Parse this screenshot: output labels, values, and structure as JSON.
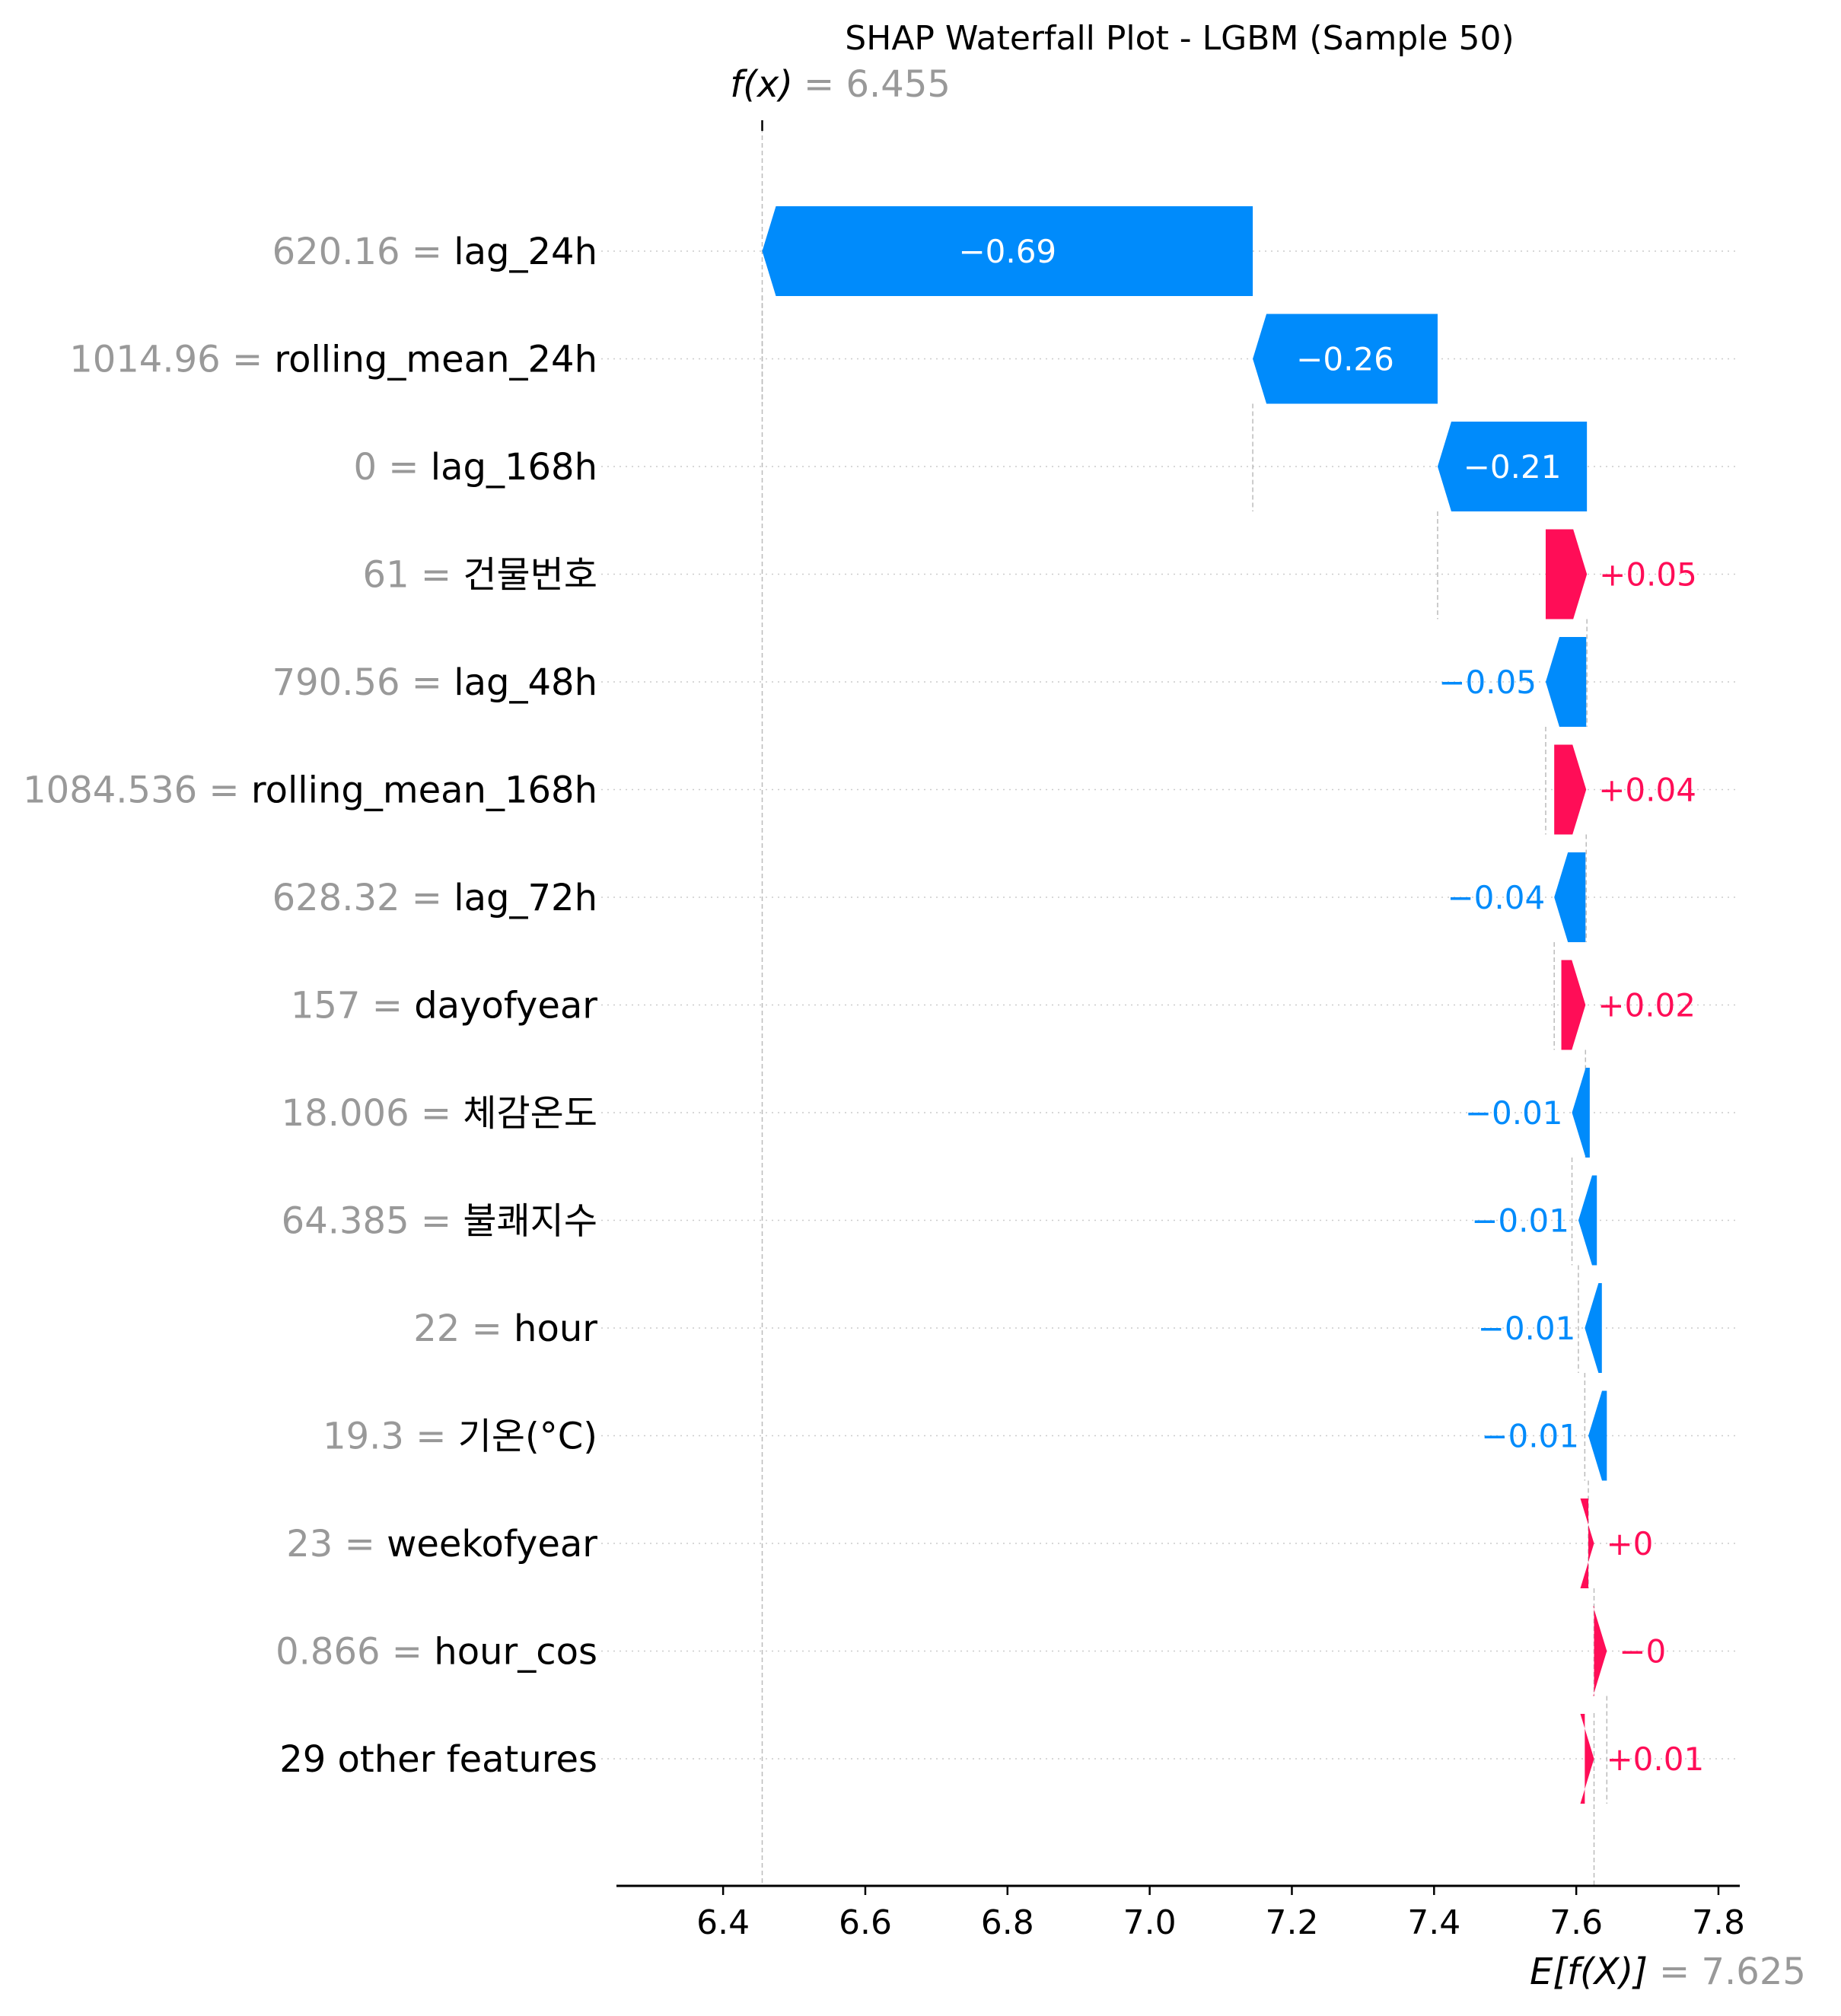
{
  "chart_data": {
    "type": "waterfall",
    "title": "SHAP Waterfall Plot - LGBM (Sample 50)",
    "fx": {
      "prefix": "f(x)",
      "equals": "= 6.455",
      "value": 6.455
    },
    "ex": {
      "prefix": "E[f(X)]",
      "equals": "= 7.625",
      "value": 7.625
    },
    "xlim": [
      6.25,
      7.83
    ],
    "xticks": [
      6.4,
      6.6,
      6.8,
      7.0,
      7.2,
      7.4,
      7.6,
      7.8
    ],
    "xtick_labels": [
      "6.4",
      "6.6",
      "6.8",
      "7.0",
      "7.2",
      "7.4",
      "7.6",
      "7.8"
    ],
    "colors": {
      "positive": "#ff0d57",
      "negative": "#008bfb",
      "axis": "#000000",
      "muted": "#999999"
    },
    "features": [
      {
        "value": "620.16",
        "name": "lag_24h",
        "shap": -0.69,
        "label": "−0.69"
      },
      {
        "value": "1014.96",
        "name": "rolling_mean_24h",
        "shap": -0.26,
        "label": "−0.26"
      },
      {
        "value": "0",
        "name": "lag_168h",
        "shap": -0.21,
        "label": "−0.21"
      },
      {
        "value": "61",
        "name": "건물번호",
        "shap": 0.05,
        "label": "+0.05"
      },
      {
        "value": "790.56",
        "name": "lag_48h",
        "shap": -0.05,
        "label": "−0.05"
      },
      {
        "value": "1084.536",
        "name": "rolling_mean_168h",
        "shap": 0.04,
        "label": "+0.04"
      },
      {
        "value": "628.32",
        "name": "lag_72h",
        "shap": -0.04,
        "label": "−0.04"
      },
      {
        "value": "157",
        "name": "dayofyear",
        "shap": 0.02,
        "label": "+0.02"
      },
      {
        "value": "18.006",
        "name": "체감온도",
        "shap": -0.01,
        "label": "−0.01"
      },
      {
        "value": "64.385",
        "name": "불쾌지수",
        "shap": -0.01,
        "label": "−0.01"
      },
      {
        "value": "22",
        "name": "hour",
        "shap": -0.01,
        "label": "−0.01"
      },
      {
        "value": "19.3",
        "name": "기온(°C)",
        "shap": -0.01,
        "label": "−0.01"
      },
      {
        "value": "23",
        "name": "weekofyear",
        "shap": 0.0,
        "label": "+0"
      },
      {
        "value": "0.866",
        "name": "hour_cos",
        "shap": -0.0,
        "label": "−0"
      },
      {
        "value": "",
        "name": "29 other features",
        "shap": 0.01,
        "label": "+0.01"
      }
    ],
    "bar_ranges": [
      [
        6.455,
        7.145
      ],
      [
        7.145,
        7.405
      ],
      [
        7.405,
        7.615
      ],
      [
        7.557,
        7.615
      ],
      [
        7.557,
        7.614
      ],
      [
        7.569,
        7.614
      ],
      [
        7.569,
        7.613
      ],
      [
        7.579,
        7.613
      ],
      [
        7.594,
        7.619
      ],
      [
        7.603,
        7.629
      ],
      [
        7.612,
        7.636
      ],
      [
        7.617,
        7.643
      ],
      [
        7.617,
        7.625
      ],
      [
        7.625,
        7.643
      ],
      [
        7.612,
        7.625
      ]
    ]
  }
}
